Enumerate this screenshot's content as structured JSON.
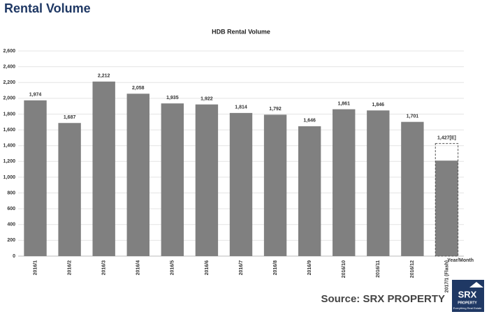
{
  "header": "Rental Volume",
  "chart_data": {
    "type": "bar",
    "title": "HDB Rental Volume",
    "x_label": "Year/Month",
    "categories": [
      "2016/1",
      "2016/2",
      "2016/3",
      "2016/4",
      "2016/5",
      "2016/6",
      "2016/7",
      "2016/8",
      "2016/9",
      "2016/10",
      "2016/11",
      "2016/12",
      "2017/1 (Flash)"
    ],
    "values": [
      1974,
      1687,
      2212,
      2058,
      1935,
      1922,
      1814,
      1792,
      1646,
      1861,
      1846,
      1701,
      1427
    ],
    "value_labels": [
      "1,974",
      "1,687",
      "2,212",
      "2,058",
      "1,935",
      "1,922",
      "1,814",
      "1,792",
      "1,646",
      "1,861",
      "1,846",
      "1,701",
      "1,427[E]"
    ],
    "partial_values": [
      null,
      null,
      null,
      null,
      null,
      null,
      null,
      null,
      null,
      null,
      null,
      null,
      1210
    ],
    "color": "#808080",
    "ylim": [
      0,
      2600
    ],
    "yticks": [
      0,
      200,
      400,
      600,
      800,
      {
        "value": 1000,
        "label": "1,000"
      },
      {
        "value": 1200,
        "label": "1,200"
      },
      {
        "value": 1400,
        "label": "1,400"
      },
      {
        "value": 1600,
        "label": "1,600"
      },
      {
        "value": 1800,
        "label": "1,800"
      },
      {
        "value": 2000,
        "label": "2,000"
      },
      {
        "value": 2200,
        "label": "2,200"
      },
      {
        "value": 2400,
        "label": "2,400"
      },
      {
        "value": 2600,
        "label": "2,600"
      }
    ],
    "grid": true
  },
  "source": "Source:  SRX PROPERTY",
  "logo": {
    "name": "SRX",
    "sub": "PROPERTY",
    "tagline": "Everything Real Estate"
  }
}
